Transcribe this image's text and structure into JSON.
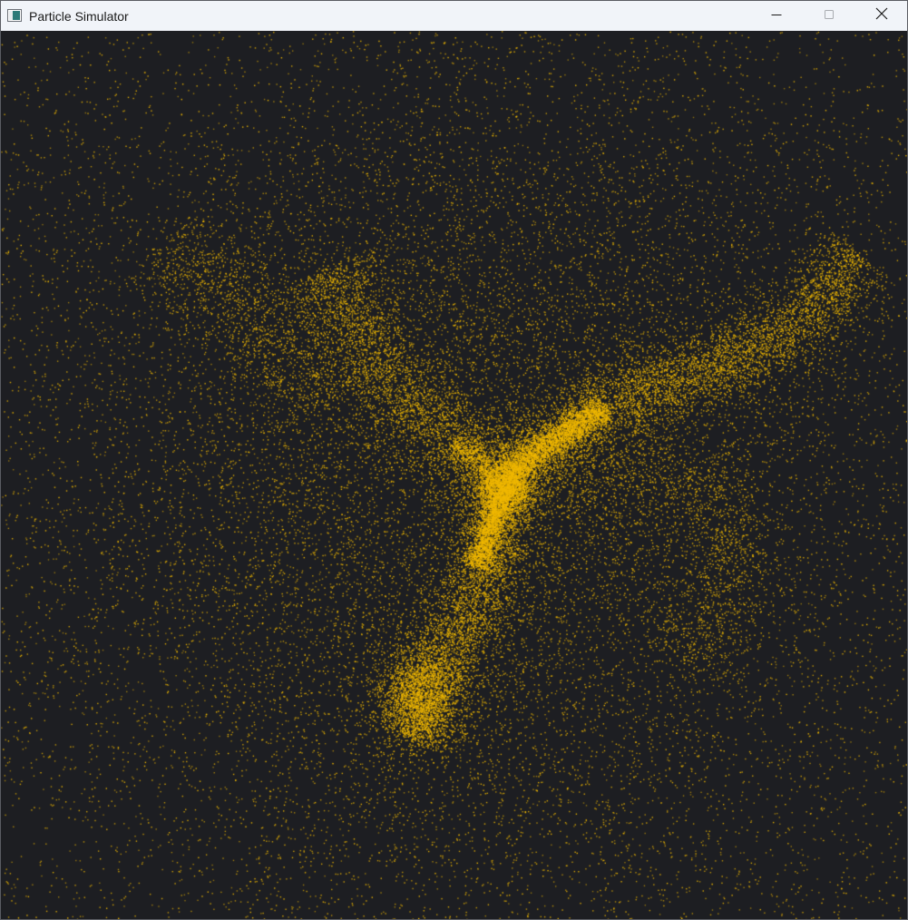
{
  "window": {
    "title": "Particle Simulator",
    "app_icon": "window-app-icon",
    "controls": {
      "minimize": "minimize-icon",
      "maximize": "maximize-icon",
      "close": "close-icon"
    }
  },
  "colors": {
    "titlebar_bg": "#f1f4f9",
    "canvas_bg": "#1d1e22",
    "particle": "#f0b800"
  }
}
